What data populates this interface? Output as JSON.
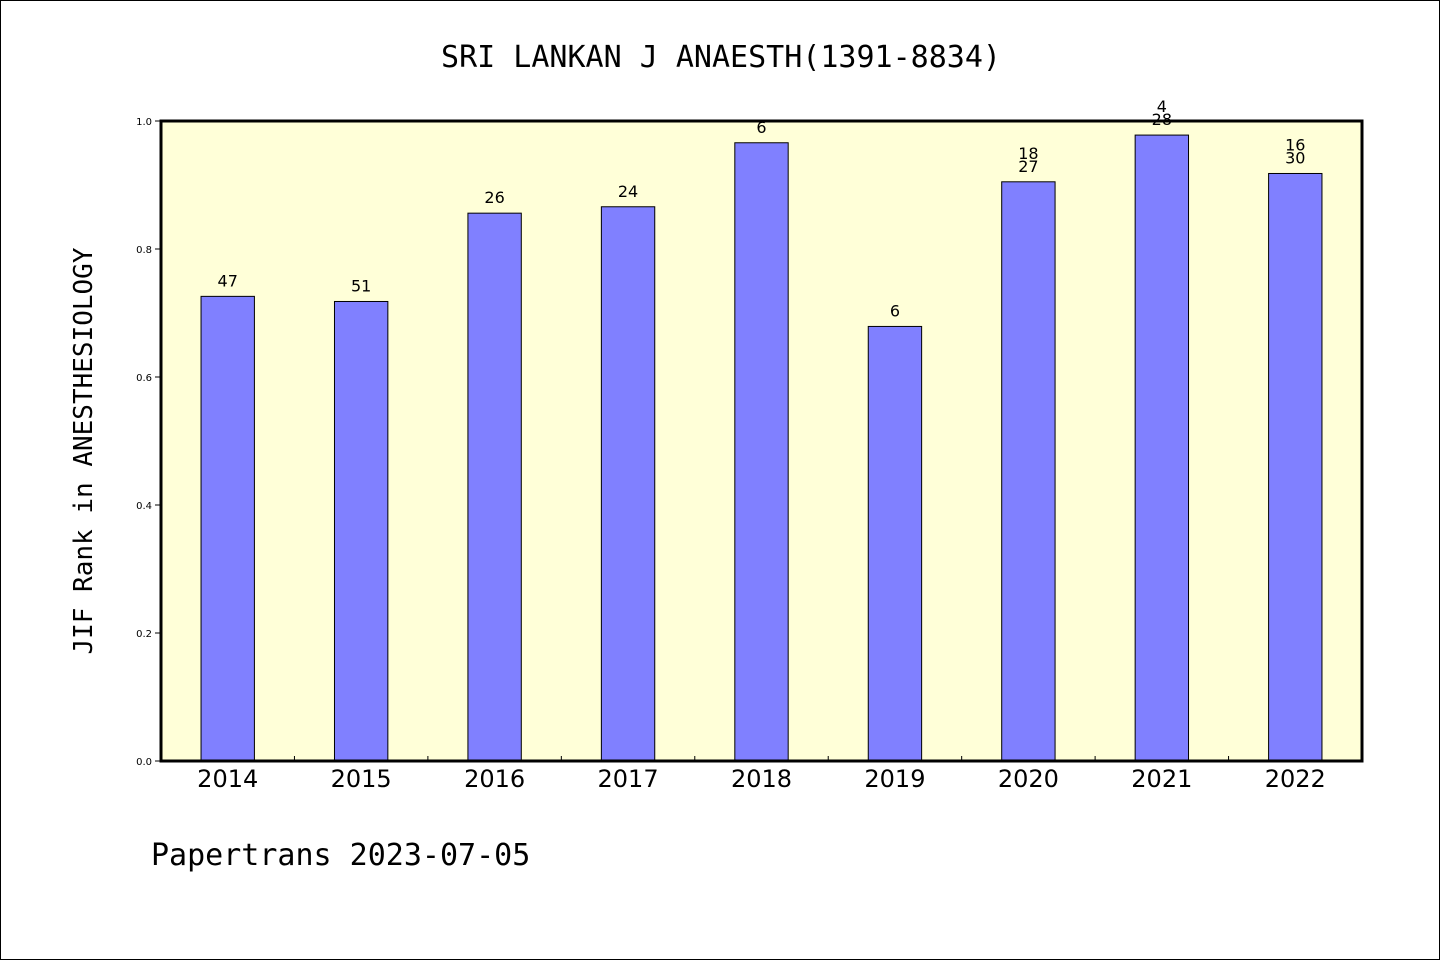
{
  "chart_data": {
    "type": "bar",
    "title": "SRI LANKAN J ANAESTH(1391-8834)",
    "xlabel": "",
    "ylabel": "JIF Rank in ANESTHESIOLOGY",
    "ylim": [
      0,
      1.0
    ],
    "yticks": [
      "0.0",
      "0.2",
      "0.4",
      "0.6",
      "0.8",
      "1.0"
    ],
    "categories": [
      "2014",
      "2015",
      "2016",
      "2017",
      "2018",
      "2019",
      "2020",
      "2021",
      "2022"
    ],
    "series": [
      {
        "values": [
          0.726,
          0.718,
          0.856,
          0.866,
          0.966,
          0.679,
          0.905,
          0.978,
          0.918
        ],
        "labels": [
          [
            "47"
          ],
          [
            "51"
          ],
          [
            "26"
          ],
          [
            "24"
          ],
          [
            "6"
          ],
          [
            "6"
          ],
          [
            "18",
            "27"
          ],
          [
            "4",
            "28"
          ],
          [
            "16",
            "30"
          ]
        ]
      }
    ],
    "grid": false,
    "legend": "none",
    "colors": {
      "bar": "#8080ff",
      "plot_background": "#ffffd8",
      "axis": "#000000"
    }
  },
  "footer": {
    "text": "Papertrans 2023-07-05"
  }
}
